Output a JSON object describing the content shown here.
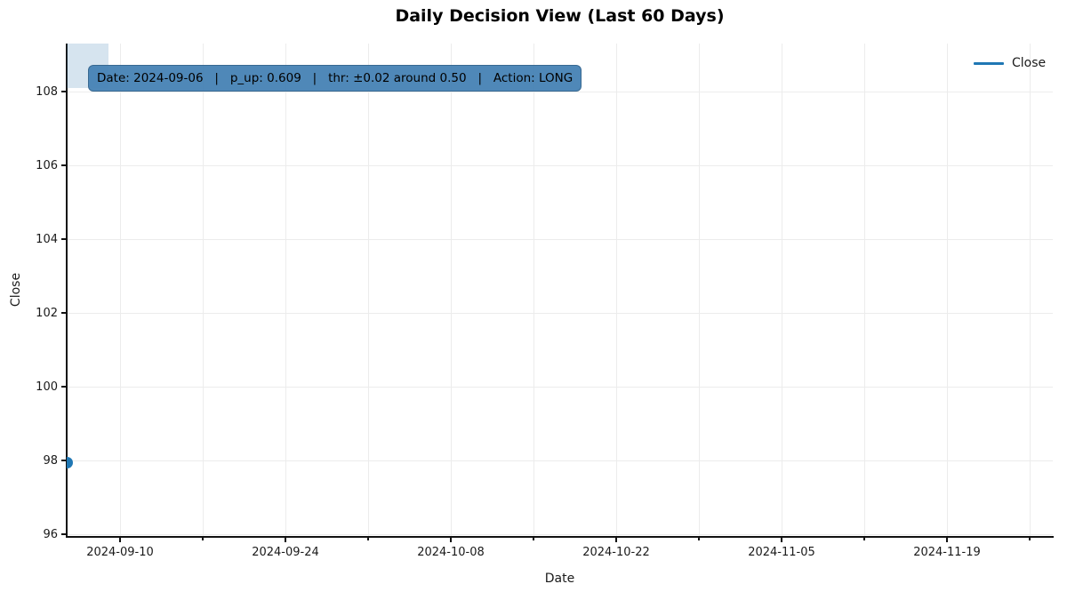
{
  "title": "Daily Decision View (Last 60 Days)",
  "axes": {
    "xlabel": "Date",
    "ylabel": "Close"
  },
  "legend": {
    "position": "upper right",
    "items": [
      {
        "label": "Close",
        "color": "#1f77b4"
      }
    ]
  },
  "annotation": {
    "text": "Date: 2024-09-06   |   p_up: 0.609   |   thr: ±0.02 around 0.50   |   Action: LONG",
    "fields": {
      "date": "2024-09-06",
      "p_up": "0.609",
      "thr": "±0.02 around 0.50",
      "action": "LONG"
    }
  },
  "colors": {
    "series_blue": "#1f77b4",
    "annotation_bg": "rgba(70,130,180,0.95)",
    "annotation_border": "rgba(53,101,141,0.9)",
    "highlight_span": "rgba(70,130,180,0.22)",
    "grid": "#ececec",
    "text": "#1a1a1a"
  },
  "chart_data": {
    "type": "line",
    "title": "Daily Decision View (Last 60 Days)",
    "xlabel": "Date",
    "ylabel": "Close",
    "grid": true,
    "legend_position": "upper right",
    "series": [
      {
        "name": "Close",
        "color": "#1f77b4",
        "marker": "circle",
        "x": [
          "2024-09-06"
        ],
        "values": [
          97.95
        ],
        "note": "single point, clipped at left axis edge"
      }
    ],
    "x_major_ticks": [
      "2024-09-10",
      "2024-09-24",
      "2024-10-08",
      "2024-10-22",
      "2024-11-05",
      "2024-11-19"
    ],
    "x_minor_ticks": [
      "2024-09-17",
      "2024-10-01",
      "2024-10-15",
      "2024-10-29",
      "2024-11-12",
      "2024-11-26"
    ],
    "yticks": [
      96,
      98,
      100,
      102,
      104,
      106,
      108
    ],
    "ylim": [
      95.9,
      109.3
    ],
    "xlim": [
      "2024-09-06",
      "2024-11-28"
    ],
    "highlight_span": {
      "x_start": "2024-09-06",
      "x_end": "2024-09-09",
      "y_bottom_value": 108.1,
      "y_top": "axis-top"
    }
  }
}
